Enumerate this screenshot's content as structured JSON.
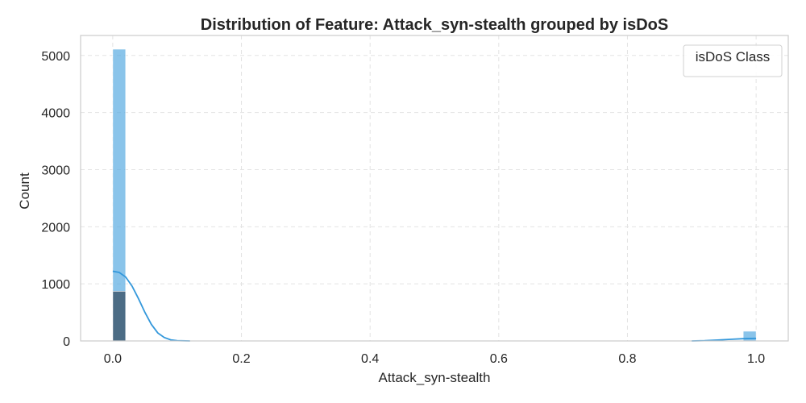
{
  "chart_data": {
    "type": "histogram",
    "title": "Distribution of Feature: Attack_syn-stealth grouped by isDoS",
    "xlabel": "Attack_syn-stealth",
    "ylabel": "Count",
    "xlim": [
      -0.05,
      1.05
    ],
    "ylim": [
      0,
      5350
    ],
    "x_ticks": [
      0.0,
      0.2,
      0.4,
      0.6,
      0.8,
      1.0
    ],
    "x_tick_labels": [
      "0.0",
      "0.2",
      "0.4",
      "0.6",
      "0.8",
      "1.0"
    ],
    "y_ticks": [
      0,
      1000,
      2000,
      3000,
      4000,
      5000
    ],
    "y_tick_labels": [
      "0",
      "1000",
      "2000",
      "3000",
      "4000",
      "5000"
    ],
    "grid": true,
    "legend": {
      "title": "isDoS Class",
      "placement": "top-right"
    },
    "bin_width": 0.02,
    "series": [
      {
        "color": "#5dade2",
        "bins": [
          {
            "x0": 0.0,
            "x1": 0.02,
            "count": 5110
          },
          {
            "x0": 0.98,
            "x1": 1.0,
            "count": 170
          }
        ]
      },
      {
        "color": "#34495e",
        "bins": [
          {
            "x0": 0.0,
            "x1": 0.02,
            "count": 870
          }
        ]
      }
    ],
    "kde": [
      {
        "color": "#3498db",
        "points": [
          [
            0.0,
            1220
          ],
          [
            0.01,
            1200
          ],
          [
            0.02,
            1120
          ],
          [
            0.03,
            960
          ],
          [
            0.04,
            740
          ],
          [
            0.05,
            500
          ],
          [
            0.06,
            290
          ],
          [
            0.07,
            140
          ],
          [
            0.08,
            60
          ],
          [
            0.09,
            20
          ],
          [
            0.1,
            5
          ],
          [
            0.12,
            0
          ]
        ]
      },
      {
        "color": "#3498db",
        "points": [
          [
            0.9,
            0
          ],
          [
            0.92,
            5
          ],
          [
            0.94,
            15
          ],
          [
            0.96,
            28
          ],
          [
            0.98,
            40
          ],
          [
            1.0,
            45
          ]
        ]
      }
    ]
  }
}
